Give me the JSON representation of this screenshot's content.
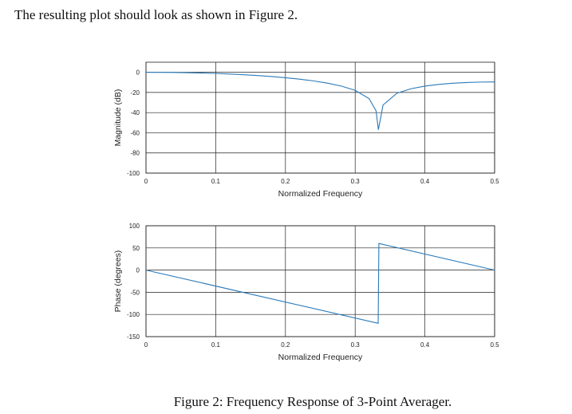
{
  "text": "The resulting plot should look as shown in Figure 2.",
  "caption": "Figure 2: Frequency Response of 3-Point Averager.",
  "chart_data": [
    {
      "type": "line",
      "xlabel": "Normalized Frequency",
      "ylabel": "Magnitude (dB)",
      "x": [
        0,
        0.02,
        0.04,
        0.06,
        0.08,
        0.1,
        0.12,
        0.14,
        0.16,
        0.18,
        0.2,
        0.22,
        0.24,
        0.26,
        0.28,
        0.3,
        0.32,
        0.33,
        0.3333,
        0.34,
        0.36,
        0.38,
        0.4,
        0.42,
        0.44,
        0.46,
        0.48,
        0.5
      ],
      "values": [
        0,
        -0.05,
        -0.18,
        -0.42,
        -0.75,
        -1.18,
        -1.73,
        -2.4,
        -3.22,
        -4.19,
        -5.36,
        -6.78,
        -8.51,
        -10.71,
        -13.62,
        -17.9,
        -26.11,
        -38.32,
        -57,
        -32.44,
        -20.76,
        -16.33,
        -13.72,
        -12.01,
        -10.86,
        -10.11,
        -9.68,
        -9.54
      ],
      "color": "#2a7ab9",
      "xlim": [
        0,
        0.5
      ],
      "xticks": [
        0,
        0.1,
        0.2,
        0.3,
        0.4,
        0.5
      ],
      "ylim": [
        -100,
        10
      ],
      "yticks": [
        0,
        -20,
        -40,
        -60,
        -80,
        -100
      ],
      "grid": true
    },
    {
      "type": "line",
      "xlabel": "Normalized Frequency",
      "ylabel": "Phase (degrees)",
      "x": [
        0,
        0.333,
        0.334,
        0.5
      ],
      "values": [
        0,
        -120,
        60,
        0
      ],
      "color": "#2a7ab9",
      "xlim": [
        0,
        0.5
      ],
      "xticks": [
        0,
        0.1,
        0.2,
        0.3,
        0.4,
        0.5
      ],
      "ylim": [
        -150,
        100
      ],
      "yticks": [
        100,
        50,
        0,
        -50,
        -100,
        -150
      ],
      "grid": true
    }
  ]
}
